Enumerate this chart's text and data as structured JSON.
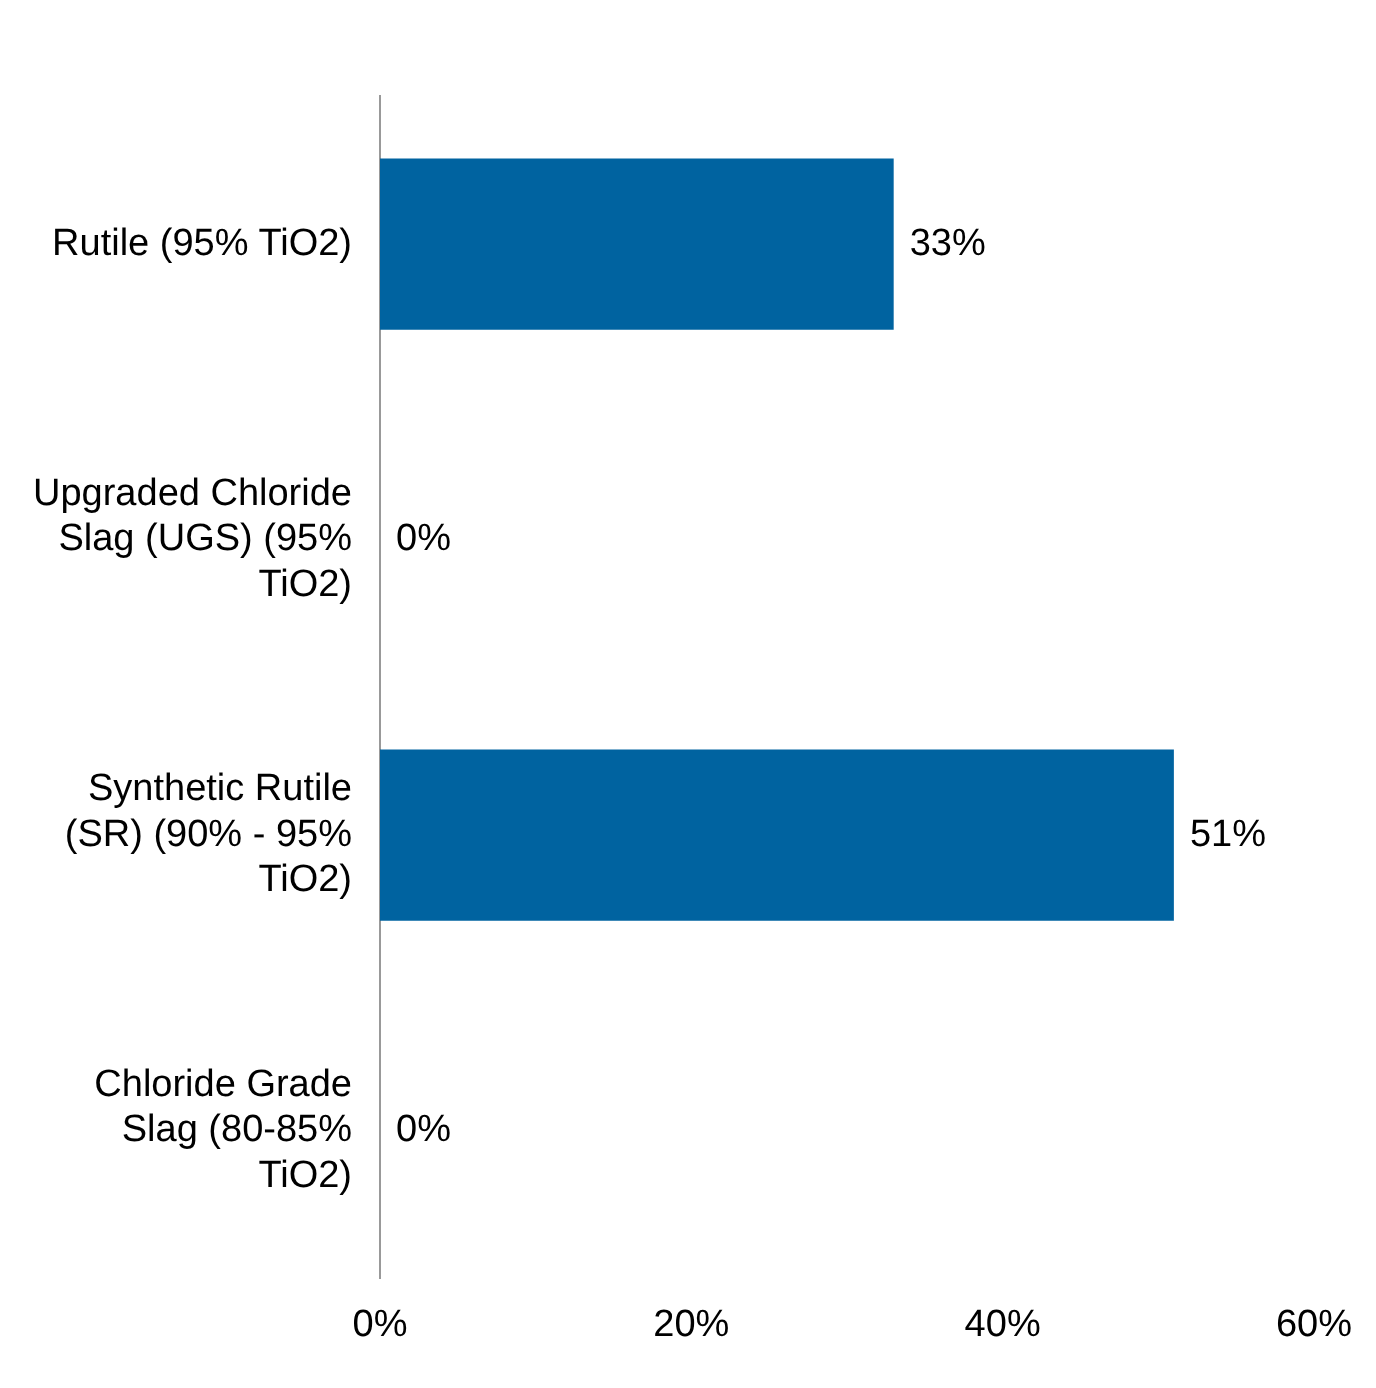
{
  "chart_data": {
    "type": "bar",
    "orientation": "horizontal",
    "categories": [
      "Rutile (95% TiO2)",
      "Upgraded Chloride Slag (UGS) (95% TiO2)",
      "Synthetic Rutile (SR) (90% - 95% TiO2)",
      "Chloride Grade Slag (80-85% TiO2)"
    ],
    "values": [
      33,
      0,
      51,
      0
    ],
    "value_labels": [
      "33%",
      "0%",
      "51%",
      "0%"
    ],
    "color": "#0063a0",
    "xlim": [
      0,
      60
    ],
    "xticks": [
      {
        "value": 0,
        "label": "0%"
      },
      {
        "value": 20,
        "label": "20%"
      },
      {
        "value": 40,
        "label": "40%"
      },
      {
        "value": 60,
        "label": "60%"
      }
    ],
    "grid": false,
    "legend": false
  }
}
